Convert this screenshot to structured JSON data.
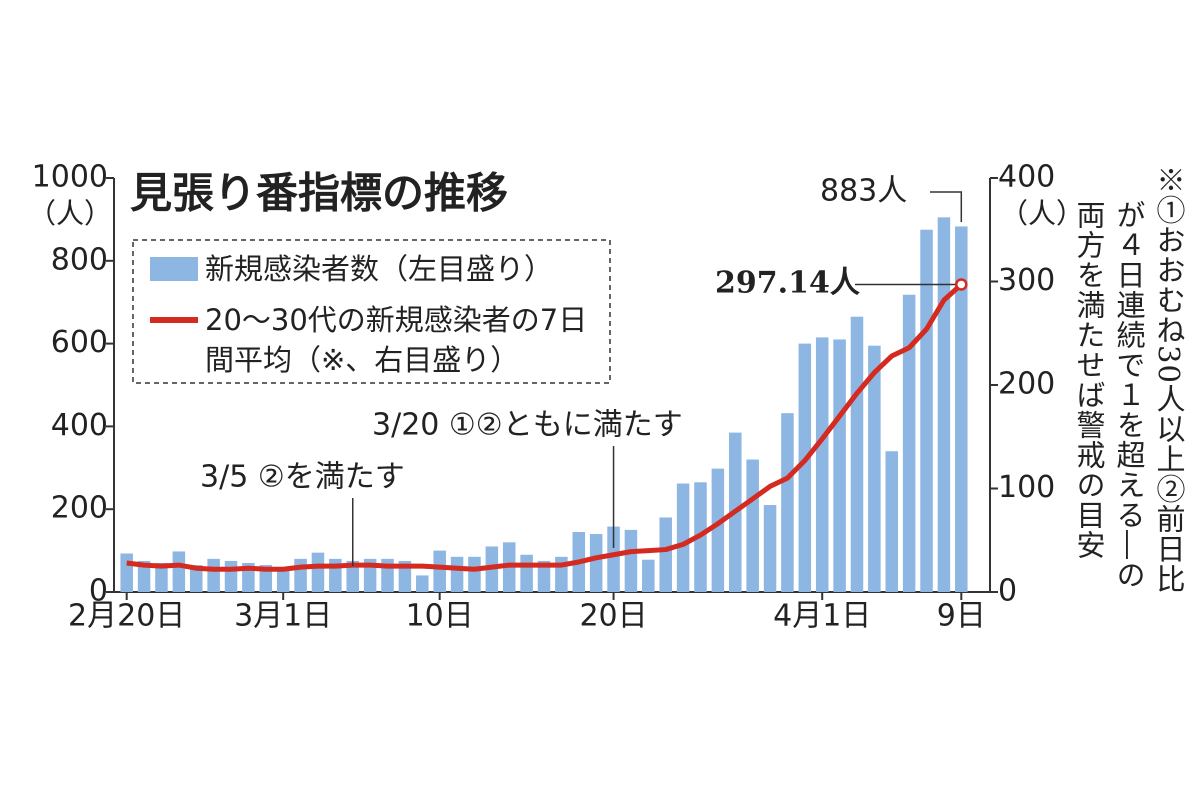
{
  "chart_data": {
    "type": "bar",
    "title": "見張り番指標の推移",
    "categories": [
      "2月20日",
      null,
      null,
      null,
      null,
      null,
      null,
      null,
      null,
      "3月1日",
      null,
      null,
      null,
      null,
      null,
      null,
      null,
      null,
      "10日",
      null,
      null,
      null,
      null,
      null,
      null,
      null,
      null,
      null,
      "20日",
      null,
      null,
      null,
      null,
      null,
      null,
      null,
      null,
      null,
      null,
      null,
      "4月1日",
      null,
      null,
      null,
      null,
      null,
      null,
      null,
      "9日"
    ],
    "series": [
      {
        "name": "新規感染者数（左目盛り）",
        "type": "bar",
        "color": "#8db6e2",
        "values": [
          93,
          75,
          70,
          98,
          65,
          80,
          75,
          70,
          65,
          60,
          80,
          95,
          80,
          75,
          80,
          80,
          75,
          40,
          100,
          85,
          85,
          110,
          120,
          90,
          75,
          85,
          145,
          140,
          158,
          150,
          78,
          180,
          262,
          265,
          298,
          385,
          320,
          210,
          432,
          600,
          615,
          610,
          665,
          595,
          340,
          718,
          875,
          905,
          883
        ]
      },
      {
        "name": "20～30代の新規感染者の7日間平均（※、右目盛り）",
        "type": "line",
        "axis": "y2",
        "color": "#d42a20",
        "values": [
          28,
          26,
          25,
          26,
          23,
          22,
          22,
          23,
          22,
          22,
          24,
          25,
          25,
          26,
          26,
          25,
          25,
          25,
          24,
          23,
          22,
          24,
          26,
          26,
          26,
          26,
          29,
          33,
          36,
          39,
          40,
          41,
          46,
          55,
          66,
          78,
          90,
          102,
          110,
          127,
          148,
          170,
          192,
          212,
          228,
          236,
          254,
          282,
          297.14
        ]
      }
    ],
    "ylim": [
      0,
      1000
    ],
    "yticks": [
      0,
      200,
      400,
      600,
      800,
      1000
    ],
    "y2lim": [
      0,
      400
    ],
    "y2ticks": [
      0,
      100,
      200,
      300,
      400
    ],
    "y_unit": "（人）",
    "y2_unit": "（人）",
    "annotations": [
      "3/5 ②を満たす",
      "3/20 ①②ともに満たす",
      "883人",
      "297.14人"
    ],
    "note": [
      "※①おおむね30人以上②前日比",
      "が４日連続で１を超える―の",
      "両方を満たせば警戒の目安"
    ]
  }
}
